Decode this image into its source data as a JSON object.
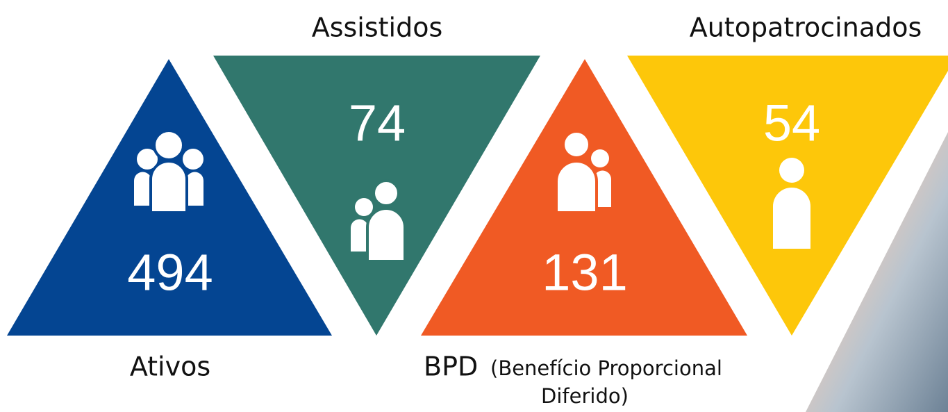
{
  "items": [
    {
      "label": "Ativos",
      "value": 494
    },
    {
      "label": "Assistidos",
      "value": 74
    },
    {
      "label": "BPD",
      "note": [
        "(Benefício Proporcional",
        "Diferido)"
      ],
      "value": 131
    },
    {
      "label": "Autopatrocinados",
      "value": 54
    }
  ]
}
